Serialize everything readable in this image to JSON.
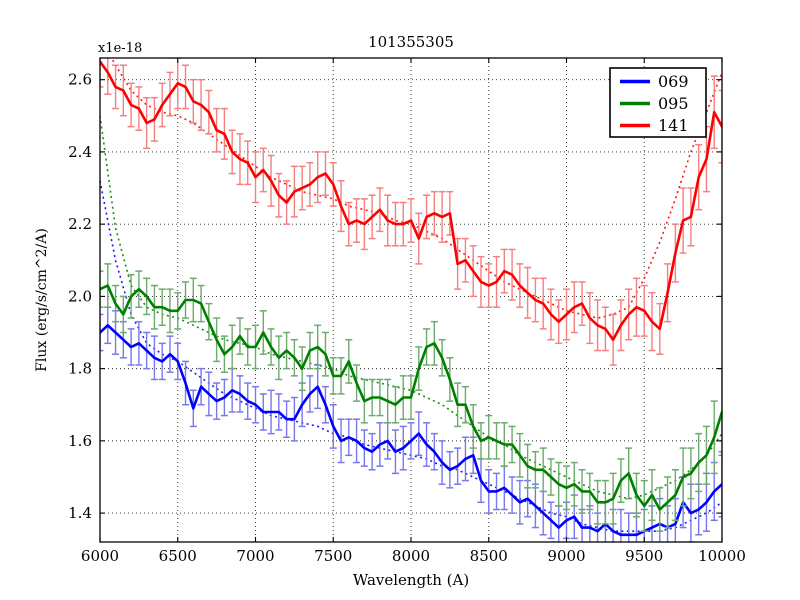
{
  "title": "101355305",
  "offset_label": "x1e-18",
  "x_axis": {
    "label": "Wavelength (A)",
    "ticks": [
      {
        "v": 6000,
        "label": "6000"
      },
      {
        "v": 6500,
        "label": "6500"
      },
      {
        "v": 7000,
        "label": "7000"
      },
      {
        "v": 7500,
        "label": "7500"
      },
      {
        "v": 8000,
        "label": "8000"
      },
      {
        "v": 8500,
        "label": "8500"
      },
      {
        "v": 9000,
        "label": "9000"
      },
      {
        "v": 9500,
        "label": "9500"
      },
      {
        "v": 10000,
        "label": "10000"
      }
    ]
  },
  "y_axis": {
    "label": "Flux (erg/s/cm^2/A)",
    "ticks": [
      {
        "v": 1.4,
        "label": "1.4"
      },
      {
        "v": 1.6,
        "label": "1.6"
      },
      {
        "v": 1.8,
        "label": "1.8"
      },
      {
        "v": 2.0,
        "label": "2.0"
      },
      {
        "v": 2.2,
        "label": "2.2"
      },
      {
        "v": 2.4,
        "label": "2.4"
      },
      {
        "v": 2.6,
        "label": "2.6"
      }
    ]
  },
  "legend": {
    "entries": [
      {
        "label": "069",
        "color": "#0000ff"
      },
      {
        "label": "095",
        "color": "#008000"
      },
      {
        "label": "141",
        "color": "#ff0000"
      }
    ]
  },
  "chart_data": {
    "type": "line",
    "title": "101355305",
    "xlabel": "Wavelength (A)",
    "ylabel": "Flux (erg/s/cm^2/A)",
    "y_offset_factor": "x1e-18",
    "xlim": [
      6000,
      10000
    ],
    "ylim": [
      1.32,
      2.66
    ],
    "grid": true,
    "grid_style": "dotted",
    "legend_position": "upper right",
    "x": [
      6000,
      6050,
      6100,
      6150,
      6200,
      6250,
      6300,
      6350,
      6400,
      6450,
      6500,
      6550,
      6600,
      6650,
      6700,
      6750,
      6800,
      6850,
      6900,
      6950,
      7000,
      7050,
      7100,
      7150,
      7200,
      7250,
      7300,
      7350,
      7400,
      7450,
      7500,
      7550,
      7600,
      7650,
      7700,
      7750,
      7800,
      7850,
      7900,
      7950,
      8000,
      8050,
      8100,
      8150,
      8200,
      8250,
      8300,
      8350,
      8400,
      8450,
      8500,
      8550,
      8600,
      8650,
      8700,
      8750,
      8800,
      8850,
      8900,
      8950,
      9000,
      9050,
      9100,
      9150,
      9200,
      9250,
      9300,
      9350,
      9400,
      9450,
      9500,
      9550,
      9600,
      9650,
      9700,
      9750,
      9800,
      9850,
      9900,
      9950,
      10000
    ],
    "series": [
      {
        "name": "069",
        "style": "solid-with-errorbars",
        "color": "#0000ff",
        "error_color": "#7878f0",
        "values": [
          1.9,
          1.92,
          1.9,
          1.88,
          1.86,
          1.87,
          1.85,
          1.83,
          1.82,
          1.84,
          1.82,
          1.76,
          1.69,
          1.75,
          1.73,
          1.71,
          1.72,
          1.74,
          1.73,
          1.71,
          1.7,
          1.68,
          1.68,
          1.68,
          1.66,
          1.66,
          1.7,
          1.73,
          1.75,
          1.7,
          1.64,
          1.6,
          1.61,
          1.6,
          1.58,
          1.57,
          1.59,
          1.6,
          1.57,
          1.58,
          1.6,
          1.62,
          1.59,
          1.57,
          1.54,
          1.52,
          1.53,
          1.55,
          1.56,
          1.49,
          1.46,
          1.46,
          1.47,
          1.45,
          1.43,
          1.44,
          1.42,
          1.4,
          1.38,
          1.36,
          1.38,
          1.39,
          1.36,
          1.36,
          1.35,
          1.37,
          1.35,
          1.34,
          1.34,
          1.34,
          1.35,
          1.36,
          1.37,
          1.36,
          1.37,
          1.43,
          1.4,
          1.41,
          1.43,
          1.46,
          1.48
        ],
        "errors": [
          0.05,
          0.05,
          0.06,
          0.05,
          0.05,
          0.06,
          0.05,
          0.06,
          0.05,
          0.05,
          0.05,
          0.06,
          0.05,
          0.05,
          0.06,
          0.05,
          0.05,
          0.06,
          0.05,
          0.05,
          0.05,
          0.05,
          0.06,
          0.05,
          0.05,
          0.06,
          0.06,
          0.05,
          0.06,
          0.05,
          0.06,
          0.06,
          0.05,
          0.06,
          0.05,
          0.05,
          0.06,
          0.05,
          0.06,
          0.06,
          0.05,
          0.06,
          0.06,
          0.05,
          0.06,
          0.05,
          0.05,
          0.06,
          0.05,
          0.06,
          0.06,
          0.05,
          0.06,
          0.05,
          0.06,
          0.05,
          0.06,
          0.06,
          0.05,
          0.06,
          0.05,
          0.06,
          0.05,
          0.06,
          0.05,
          0.06,
          0.06,
          0.07,
          0.06,
          0.06,
          0.06,
          0.06,
          0.07,
          0.06,
          0.07,
          0.07,
          0.08,
          0.07,
          0.08,
          0.08,
          0.09
        ]
      },
      {
        "name": "095",
        "style": "solid-with-errorbars",
        "color": "#008000",
        "error_color": "#6cab6c",
        "values": [
          2.02,
          2.03,
          1.98,
          1.95,
          2.0,
          2.02,
          2.0,
          1.97,
          1.97,
          1.96,
          1.96,
          1.99,
          1.99,
          1.98,
          1.93,
          1.88,
          1.84,
          1.86,
          1.89,
          1.86,
          1.86,
          1.9,
          1.86,
          1.83,
          1.85,
          1.83,
          1.8,
          1.85,
          1.86,
          1.84,
          1.78,
          1.78,
          1.82,
          1.76,
          1.71,
          1.72,
          1.72,
          1.71,
          1.7,
          1.72,
          1.72,
          1.8,
          1.86,
          1.87,
          1.83,
          1.77,
          1.7,
          1.7,
          1.64,
          1.6,
          1.61,
          1.6,
          1.59,
          1.59,
          1.56,
          1.53,
          1.52,
          1.52,
          1.5,
          1.48,
          1.47,
          1.48,
          1.46,
          1.46,
          1.43,
          1.43,
          1.44,
          1.49,
          1.51,
          1.45,
          1.42,
          1.45,
          1.41,
          1.43,
          1.45,
          1.5,
          1.51,
          1.54,
          1.56,
          1.61,
          1.68
        ],
        "errors": [
          0.05,
          0.06,
          0.05,
          0.05,
          0.06,
          0.05,
          0.05,
          0.06,
          0.05,
          0.06,
          0.05,
          0.05,
          0.06,
          0.05,
          0.05,
          0.06,
          0.05,
          0.06,
          0.05,
          0.05,
          0.06,
          0.06,
          0.05,
          0.06,
          0.05,
          0.05,
          0.06,
          0.05,
          0.06,
          0.06,
          0.05,
          0.05,
          0.06,
          0.05,
          0.06,
          0.05,
          0.05,
          0.06,
          0.05,
          0.06,
          0.06,
          0.06,
          0.05,
          0.06,
          0.05,
          0.06,
          0.06,
          0.05,
          0.06,
          0.05,
          0.06,
          0.05,
          0.06,
          0.05,
          0.06,
          0.06,
          0.05,
          0.06,
          0.05,
          0.06,
          0.06,
          0.06,
          0.06,
          0.05,
          0.06,
          0.06,
          0.07,
          0.06,
          0.07,
          0.06,
          0.07,
          0.07,
          0.06,
          0.07,
          0.07,
          0.08,
          0.07,
          0.08,
          0.08,
          0.1,
          0.12
        ]
      },
      {
        "name": "141",
        "style": "solid-with-errorbars",
        "color": "#ff0000",
        "error_color": "#f58080",
        "values": [
          2.65,
          2.62,
          2.58,
          2.57,
          2.53,
          2.52,
          2.48,
          2.49,
          2.53,
          2.56,
          2.59,
          2.58,
          2.54,
          2.53,
          2.51,
          2.46,
          2.45,
          2.4,
          2.38,
          2.37,
          2.33,
          2.35,
          2.32,
          2.28,
          2.26,
          2.29,
          2.3,
          2.31,
          2.33,
          2.34,
          2.31,
          2.25,
          2.2,
          2.21,
          2.2,
          2.22,
          2.24,
          2.21,
          2.2,
          2.2,
          2.21,
          2.16,
          2.22,
          2.23,
          2.22,
          2.23,
          2.09,
          2.1,
          2.07,
          2.04,
          2.03,
          2.04,
          2.07,
          2.06,
          2.03,
          2.01,
          1.99,
          1.98,
          1.95,
          1.93,
          1.95,
          1.97,
          1.98,
          1.94,
          1.92,
          1.91,
          1.88,
          1.92,
          1.95,
          1.97,
          1.96,
          1.93,
          1.91,
          2.01,
          2.12,
          2.21,
          2.22,
          2.33,
          2.38,
          2.51,
          2.47
        ],
        "errors": [
          0.07,
          0.06,
          0.06,
          0.07,
          0.06,
          0.06,
          0.07,
          0.06,
          0.06,
          0.06,
          0.07,
          0.06,
          0.06,
          0.07,
          0.06,
          0.06,
          0.07,
          0.06,
          0.07,
          0.06,
          0.07,
          0.06,
          0.07,
          0.06,
          0.06,
          0.07,
          0.06,
          0.06,
          0.07,
          0.06,
          0.06,
          0.07,
          0.06,
          0.06,
          0.07,
          0.06,
          0.06,
          0.07,
          0.06,
          0.06,
          0.06,
          0.07,
          0.06,
          0.06,
          0.07,
          0.06,
          0.07,
          0.06,
          0.07,
          0.07,
          0.06,
          0.07,
          0.06,
          0.07,
          0.06,
          0.07,
          0.06,
          0.07,
          0.07,
          0.06,
          0.07,
          0.07,
          0.06,
          0.07,
          0.07,
          0.06,
          0.07,
          0.07,
          0.07,
          0.08,
          0.07,
          0.08,
          0.07,
          0.08,
          0.08,
          0.09,
          0.08,
          0.09,
          0.09,
          0.1,
          0.1
        ]
      },
      {
        "name": "069-model",
        "style": "dotted",
        "color": "#0000ff",
        "x": [
          6000,
          6100,
          6200,
          6300,
          6400,
          6500,
          6600,
          6700,
          6800,
          6900,
          7000,
          7100,
          7200,
          7300,
          7400,
          7500,
          7600,
          7700,
          7800,
          7900,
          8000,
          8100,
          8200,
          8300,
          8400,
          8500,
          8600,
          8700,
          8800,
          8900,
          9000,
          9100,
          9200,
          9300,
          9400,
          9500,
          9600,
          9700,
          9800,
          9900,
          10000
        ],
        "values": [
          2.32,
          2.1,
          1.95,
          1.87,
          1.84,
          1.82,
          1.79,
          1.76,
          1.73,
          1.71,
          1.69,
          1.67,
          1.66,
          1.65,
          1.64,
          1.62,
          1.61,
          1.59,
          1.58,
          1.57,
          1.56,
          1.55,
          1.53,
          1.52,
          1.5,
          1.48,
          1.46,
          1.44,
          1.42,
          1.4,
          1.39,
          1.37,
          1.36,
          1.35,
          1.35,
          1.35,
          1.35,
          1.36,
          1.38,
          1.4,
          1.43
        ]
      },
      {
        "name": "095-model",
        "style": "dotted",
        "color": "#008000",
        "x": [
          6000,
          6100,
          6200,
          6300,
          6400,
          6500,
          6600,
          6700,
          6800,
          6900,
          7000,
          7100,
          7200,
          7300,
          7400,
          7500,
          7600,
          7700,
          7800,
          7900,
          8000,
          8100,
          8200,
          8300,
          8400,
          8500,
          8600,
          8700,
          8800,
          8900,
          9000,
          9100,
          9200,
          9300,
          9400,
          9500,
          9600,
          9700,
          9800,
          9900,
          10000
        ],
        "values": [
          2.5,
          2.19,
          2.03,
          1.97,
          1.95,
          1.94,
          1.92,
          1.9,
          1.88,
          1.87,
          1.86,
          1.84,
          1.83,
          1.82,
          1.81,
          1.8,
          1.78,
          1.77,
          1.76,
          1.75,
          1.74,
          1.72,
          1.7,
          1.67,
          1.64,
          1.61,
          1.59,
          1.56,
          1.54,
          1.52,
          1.5,
          1.48,
          1.46,
          1.45,
          1.44,
          1.45,
          1.47,
          1.49,
          1.52,
          1.56,
          1.62
        ]
      },
      {
        "name": "141-model",
        "style": "dotted",
        "color": "#ff0000",
        "x": [
          6000,
          6100,
          6200,
          6300,
          6400,
          6500,
          6600,
          6700,
          6800,
          6900,
          7000,
          7100,
          7200,
          7300,
          7400,
          7500,
          7600,
          7700,
          7800,
          7900,
          8000,
          8100,
          8200,
          8300,
          8400,
          8500,
          8600,
          8700,
          8800,
          8900,
          9000,
          9100,
          9200,
          9300,
          9400,
          9500,
          9600,
          9700,
          9800,
          9900,
          10000
        ],
        "values": [
          2.72,
          2.64,
          2.57,
          2.53,
          2.51,
          2.5,
          2.48,
          2.45,
          2.42,
          2.39,
          2.36,
          2.33,
          2.31,
          2.29,
          2.28,
          2.27,
          2.25,
          2.24,
          2.23,
          2.21,
          2.2,
          2.18,
          2.16,
          2.13,
          2.1,
          2.07,
          2.04,
          2.02,
          2.0,
          1.98,
          1.96,
          1.95,
          1.94,
          1.95,
          1.97,
          2.05,
          2.15,
          2.27,
          2.4,
          2.51,
          2.62
        ]
      }
    ]
  }
}
